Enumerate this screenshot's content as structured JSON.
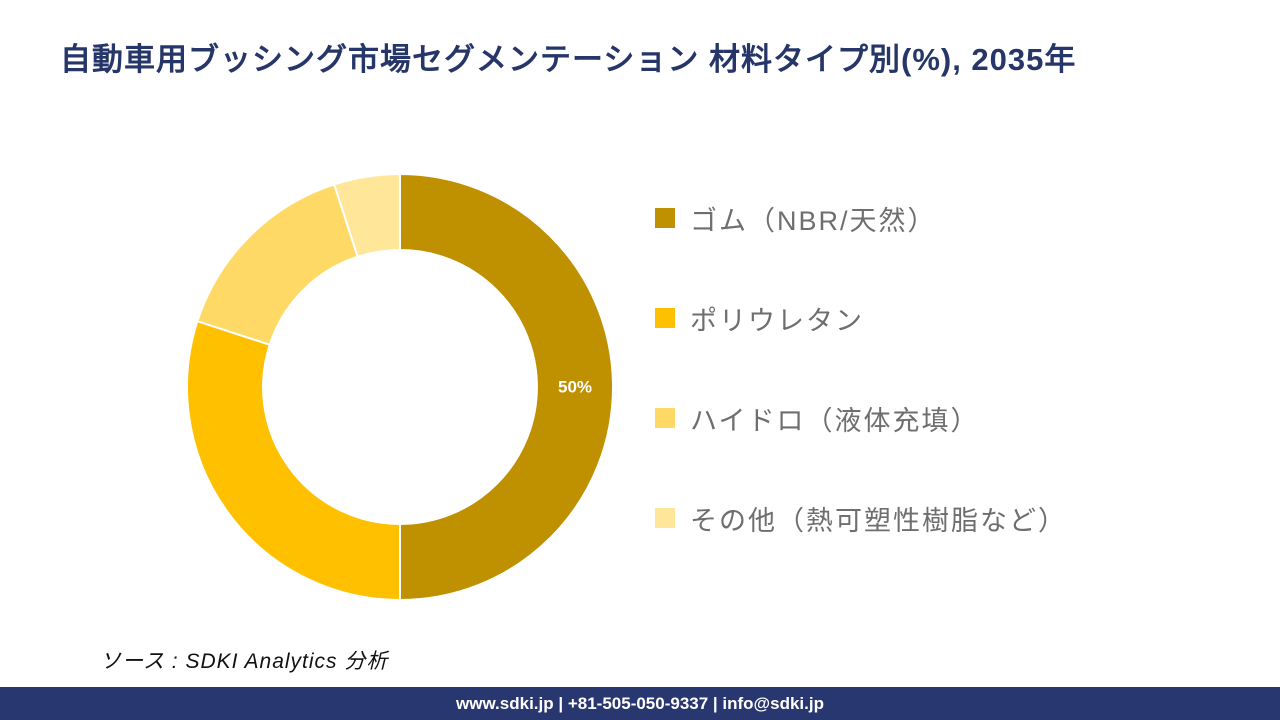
{
  "title": "自動車用ブッシング市場セグメンテーション 材料タイプ別(%), 2035年",
  "source_note": "ソース : SDKI Analytics 分析",
  "footer": "www.sdki.jp | +81-505-050-9337 | info@sdki.jp",
  "colors": {
    "title_text": "#263669",
    "legend_text": "#6e6e6e",
    "footer_bg": "#293770",
    "footer_text": "#ffffff",
    "data_label_text": "#ffffff"
  },
  "chart_data": {
    "type": "pie",
    "subtype": "donut",
    "title": "自動車用ブッシング市場セグメンテーション 材料タイプ別(%), 2035年",
    "categories": [
      "ゴム（NBR/天然）",
      "ポリウレタン",
      "ハイドロ（液体充填）",
      "その他（熱可塑性樹脂など）"
    ],
    "values": [
      50,
      30,
      15,
      5
    ],
    "unit": "%",
    "colors": [
      "#BF9000",
      "#FFC000",
      "#FFD966",
      "#FFE699"
    ],
    "data_labels": [
      "50%",
      "",
      "",
      ""
    ],
    "legend_position": "right",
    "start_angle_deg": 0,
    "direction": "clockwise",
    "inner_radius_ratio": 0.643,
    "segment_border_color": "#ffffff"
  }
}
